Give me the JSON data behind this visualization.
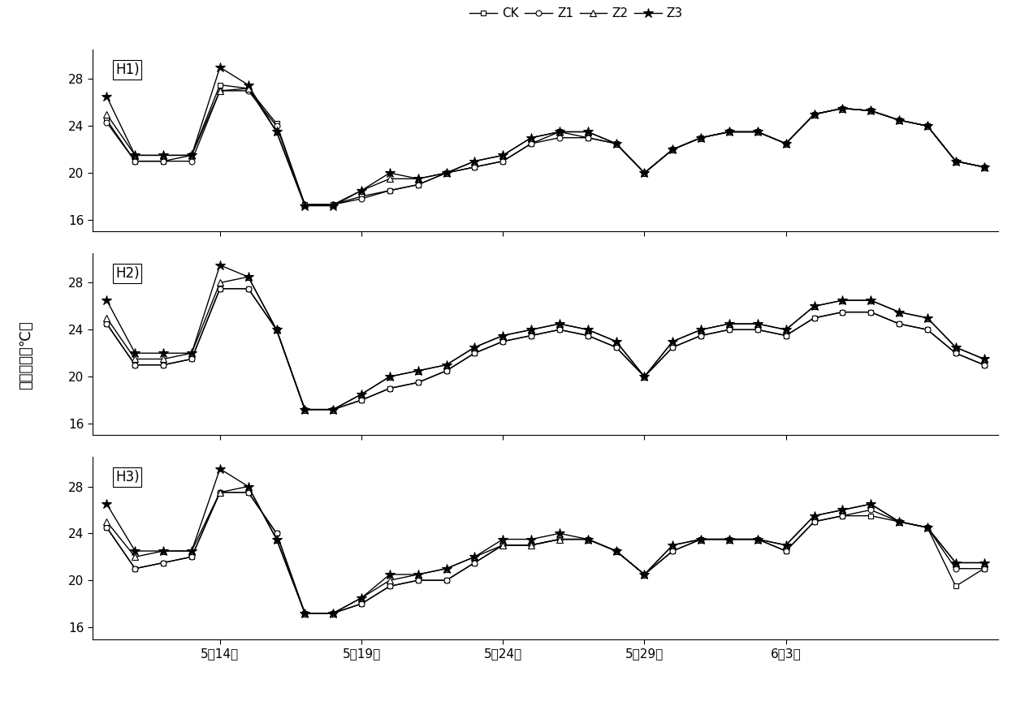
{
  "ylabel": "平均温度（℃）",
  "x_tick_labels": [
    "5月14日",
    "5月19日",
    "5月24日",
    "5月29日",
    "6月3日"
  ],
  "yticks": [
    16,
    20,
    24,
    28
  ],
  "ylim": [
    15.0,
    30.5
  ],
  "legend_labels": [
    "CK",
    "Z1",
    "Z2",
    "Z3"
  ],
  "panel_labels": [
    "H1)",
    "H2)",
    "H3)"
  ],
  "background_color": "#ffffff",
  "line_color": "#000000",
  "x_tick_positions": [
    4,
    9,
    14,
    19,
    24
  ],
  "H1_CK": [
    24.5,
    21.0,
    21.0,
    21.5,
    27.5,
    27.2,
    24.2,
    17.3,
    17.3,
    18.0,
    18.5,
    19.0,
    20.0,
    20.5,
    21.0,
    22.5,
    23.5,
    23.0,
    22.5,
    20.0,
    22.0,
    23.0,
    23.5,
    23.5,
    22.5,
    25.0,
    25.5,
    25.3,
    24.5,
    24.0,
    21.0,
    20.5
  ],
  "H1_Z1": [
    24.3,
    21.0,
    21.0,
    21.0,
    27.0,
    27.0,
    24.0,
    17.3,
    17.3,
    17.8,
    18.5,
    19.0,
    20.0,
    20.5,
    21.0,
    22.5,
    23.0,
    23.0,
    22.5,
    20.0,
    22.0,
    23.0,
    23.5,
    23.5,
    22.5,
    25.0,
    25.5,
    25.3,
    24.5,
    24.0,
    21.0,
    20.5
  ],
  "H1_Z2": [
    25.0,
    21.5,
    21.5,
    21.5,
    27.0,
    27.2,
    23.5,
    17.3,
    17.3,
    18.5,
    19.5,
    19.5,
    20.0,
    21.0,
    21.5,
    23.0,
    23.5,
    23.5,
    22.5,
    20.0,
    22.0,
    23.0,
    23.5,
    23.5,
    22.5,
    25.0,
    25.5,
    25.3,
    24.5,
    24.0,
    21.0,
    20.5
  ],
  "H1_Z3": [
    26.5,
    21.5,
    21.5,
    21.5,
    29.0,
    27.5,
    23.5,
    17.2,
    17.2,
    18.5,
    20.0,
    19.5,
    20.0,
    21.0,
    21.5,
    23.0,
    23.5,
    23.5,
    22.5,
    20.0,
    22.0,
    23.0,
    23.5,
    23.5,
    22.5,
    25.0,
    25.5,
    25.3,
    24.5,
    24.0,
    21.0,
    20.5
  ],
  "H2_CK": [
    24.5,
    21.0,
    21.0,
    21.5,
    27.5,
    27.5,
    24.0,
    17.2,
    17.2,
    18.0,
    19.0,
    19.5,
    20.5,
    22.0,
    23.0,
    23.5,
    24.0,
    23.5,
    22.5,
    20.0,
    22.5,
    23.5,
    24.0,
    24.0,
    23.5,
    25.0,
    25.5,
    25.5,
    24.5,
    24.0,
    22.0,
    21.0
  ],
  "H2_Z1": [
    24.5,
    21.0,
    21.0,
    21.5,
    27.5,
    27.5,
    24.0,
    17.2,
    17.2,
    18.0,
    19.0,
    19.5,
    20.5,
    22.0,
    23.0,
    23.5,
    24.0,
    23.5,
    22.5,
    20.0,
    22.5,
    23.5,
    24.0,
    24.0,
    23.5,
    25.0,
    25.5,
    25.5,
    24.5,
    24.0,
    22.0,
    21.0
  ],
  "H2_Z2": [
    25.0,
    21.5,
    21.5,
    22.0,
    28.0,
    28.5,
    24.0,
    17.2,
    17.2,
    18.5,
    20.0,
    20.5,
    21.0,
    22.5,
    23.5,
    24.0,
    24.5,
    24.0,
    23.0,
    20.0,
    23.0,
    24.0,
    24.5,
    24.5,
    24.0,
    26.0,
    26.5,
    26.5,
    25.5,
    25.0,
    22.5,
    21.5
  ],
  "H2_Z3": [
    26.5,
    22.0,
    22.0,
    22.0,
    29.5,
    28.5,
    24.0,
    17.2,
    17.2,
    18.5,
    20.0,
    20.5,
    21.0,
    22.5,
    23.5,
    24.0,
    24.5,
    24.0,
    23.0,
    20.0,
    23.0,
    24.0,
    24.5,
    24.5,
    24.0,
    26.0,
    26.5,
    26.5,
    25.5,
    25.0,
    22.5,
    21.5
  ],
  "H3_CK": [
    24.5,
    21.0,
    21.5,
    22.0,
    27.5,
    27.5,
    24.0,
    17.2,
    17.2,
    18.0,
    19.5,
    20.0,
    20.0,
    21.5,
    23.0,
    23.0,
    23.5,
    23.5,
    22.5,
    20.5,
    22.5,
    23.5,
    23.5,
    23.5,
    22.5,
    25.0,
    25.5,
    25.5,
    25.0,
    24.5,
    19.5,
    21.0
  ],
  "H3_Z1": [
    24.5,
    21.0,
    21.5,
    22.0,
    27.5,
    27.5,
    24.0,
    17.2,
    17.2,
    18.0,
    19.5,
    20.0,
    20.0,
    21.5,
    23.0,
    23.0,
    23.5,
    23.5,
    22.5,
    20.5,
    22.5,
    23.5,
    23.5,
    23.5,
    22.5,
    25.0,
    25.5,
    26.0,
    25.0,
    24.5,
    21.0,
    21.0
  ],
  "H3_Z2": [
    25.0,
    22.0,
    22.5,
    22.5,
    27.5,
    28.0,
    23.5,
    17.2,
    17.2,
    18.5,
    20.0,
    20.5,
    21.0,
    22.0,
    23.0,
    23.0,
    23.5,
    23.5,
    22.5,
    20.5,
    23.0,
    23.5,
    23.5,
    23.5,
    23.0,
    25.5,
    26.0,
    26.5,
    25.0,
    24.5,
    21.5,
    21.5
  ],
  "H3_Z3": [
    26.5,
    22.5,
    22.5,
    22.5,
    29.5,
    28.0,
    23.5,
    17.2,
    17.2,
    18.5,
    20.5,
    20.5,
    21.0,
    22.0,
    23.5,
    23.5,
    24.0,
    23.5,
    22.5,
    20.5,
    23.0,
    23.5,
    23.5,
    23.5,
    23.0,
    25.5,
    26.0,
    26.5,
    25.0,
    24.5,
    21.5,
    21.5
  ]
}
